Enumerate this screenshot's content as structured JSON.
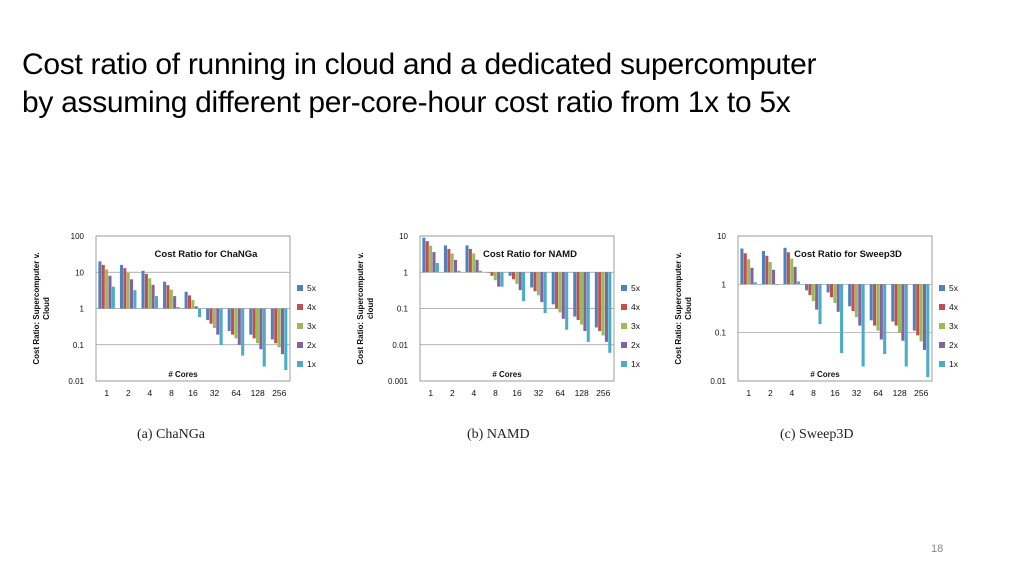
{
  "slide": {
    "title_line1": "Cost ratio of running in cloud and a dedicated supercomputer",
    "title_line2": "by assuming different per-core-hour cost ratio from 1x to 5x",
    "page_number": "18"
  },
  "series_colors": {
    "5x": "#4f81bd",
    "4x": "#c0504d",
    "3x": "#9bbb59",
    "2x": "#8064a2",
    "1x": "#4bacc6"
  },
  "chart_data": [
    {
      "type": "bar",
      "caption": "(a) ChaNGa",
      "title": "Cost Ratio for ChaNGa",
      "xlabel": "# Cores",
      "ylabel": "Cost Ratio: Supercomputer v. Cloud",
      "yscale": "log",
      "ylim": [
        0.01,
        100
      ],
      "yticks": [
        "0.01",
        "0.1",
        "1",
        "10",
        "100"
      ],
      "categories": [
        "1",
        "2",
        "4",
        "8",
        "16",
        "32",
        "64",
        "128",
        "256"
      ],
      "legend_position": "right",
      "series": [
        {
          "name": "5x",
          "values": [
            20,
            16,
            11,
            5.5,
            2.9,
            0.48,
            0.24,
            0.19,
            0.14
          ]
        },
        {
          "name": "4x",
          "values": [
            16,
            13,
            9,
            4.4,
            2.3,
            0.38,
            0.19,
            0.15,
            0.11
          ]
        },
        {
          "name": "3x",
          "values": [
            12,
            9.5,
            6.8,
            3.3,
            1.7,
            0.29,
            0.15,
            0.11,
            0.085
          ]
        },
        {
          "name": "2x",
          "values": [
            8,
            6.4,
            4.5,
            2.2,
            1.15,
            0.19,
            0.1,
            0.075,
            0.055
          ]
        },
        {
          "name": "1x",
          "values": [
            4,
            3.2,
            2.2,
            1.1,
            0.58,
            0.1,
            0.05,
            0.025,
            0.02
          ]
        }
      ]
    },
    {
      "type": "bar",
      "caption": "(b) NAMD",
      "title": "Cost Ratio for NAMD",
      "xlabel": "# Cores",
      "ylabel": "Cost Ratio: Supercomputer v. cloud",
      "yscale": "log",
      "ylim": [
        0.001,
        10
      ],
      "yticks": [
        "0.001",
        "0.01",
        "0.1",
        "1",
        "10"
      ],
      "categories": [
        "1",
        "2",
        "4",
        "8",
        "16",
        "32",
        "64",
        "128",
        "256"
      ],
      "legend_position": "right",
      "series": [
        {
          "name": "5x",
          "values": [
            9,
            5.5,
            5.5,
            1,
            0.8,
            0.38,
            0.13,
            0.06,
            0.03
          ]
        },
        {
          "name": "4x",
          "values": [
            7.2,
            4.4,
            4.4,
            0.8,
            0.64,
            0.3,
            0.1,
            0.048,
            0.024
          ]
        },
        {
          "name": "3x",
          "values": [
            5.4,
            3.3,
            3.3,
            0.6,
            0.48,
            0.23,
            0.078,
            0.036,
            0.018
          ]
        },
        {
          "name": "2x",
          "values": [
            3.6,
            2.2,
            2.2,
            0.4,
            0.32,
            0.15,
            0.052,
            0.024,
            0.012
          ]
        },
        {
          "name": "1x",
          "values": [
            1.8,
            1.1,
            1.1,
            0.4,
            0.16,
            0.075,
            0.026,
            0.012,
            0.006
          ]
        }
      ]
    },
    {
      "type": "bar",
      "caption": "(c) Sweep3D",
      "title": "Cost Ratio for Sweep3D",
      "xlabel": "# Cores",
      "ylabel": "Cost Ratio: Supercomputer v. Cloud",
      "yscale": "log",
      "ylim": [
        0.01,
        10
      ],
      "yticks": [
        "0.01",
        "0.1",
        "1",
        "10"
      ],
      "categories": [
        "1",
        "2",
        "4",
        "8",
        "16",
        "32",
        "64",
        "128",
        "256"
      ],
      "legend_position": "right",
      "series": [
        {
          "name": "5x",
          "values": [
            5.5,
            4.9,
            5.7,
            0.75,
            0.68,
            0.35,
            0.18,
            0.17,
            0.11
          ]
        },
        {
          "name": "4x",
          "values": [
            4.4,
            3.9,
            4.6,
            0.6,
            0.54,
            0.28,
            0.14,
            0.14,
            0.088
          ]
        },
        {
          "name": "3x",
          "values": [
            3.3,
            2.9,
            3.4,
            0.45,
            0.41,
            0.21,
            0.11,
            0.1,
            0.066
          ]
        },
        {
          "name": "2x",
          "values": [
            2.2,
            2,
            2.3,
            0.3,
            0.27,
            0.14,
            0.072,
            0.068,
            0.044
          ]
        },
        {
          "name": "1x",
          "values": [
            1.1,
            1,
            1.15,
            0.15,
            0.038,
            0.02,
            0.036,
            0.02,
            0.012
          ]
        }
      ]
    }
  ]
}
